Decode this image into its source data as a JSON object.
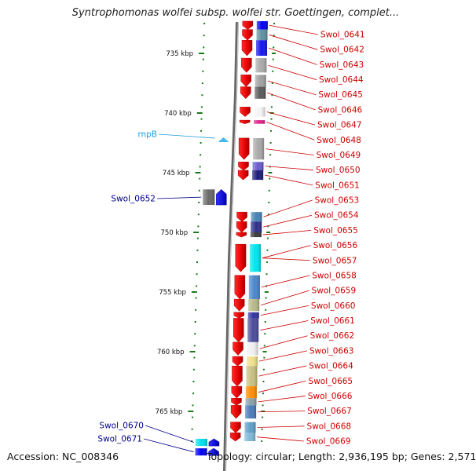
{
  "title": "Syntrophomonas wolfei subsp. wolfei str. Goettingen, complet...",
  "footer": {
    "accession": "Accession: NC_008346",
    "topology": "Topology: circular; Length: 2,936,195 bp; Genes: 2,571"
  },
  "colors": {
    "right_label": "#cc0000",
    "left_label": "#00008b",
    "rna_label": "#1e9bd7",
    "scale_tick": "#1a7a1a"
  },
  "scale": {
    "unit": "kbp",
    "ticks": [
      {
        "kbp": 735,
        "label": "735 kbp"
      },
      {
        "kbp": 740,
        "label": "740 kbp"
      },
      {
        "kbp": 745,
        "label": "745 kbp"
      },
      {
        "kbp": 750,
        "label": "750 kbp"
      },
      {
        "kbp": 755,
        "label": "755 kbp"
      },
      {
        "kbp": 760,
        "label": "760 kbp"
      },
      {
        "kbp": 765,
        "label": "765 kbp"
      }
    ]
  },
  "genes_right": [
    {
      "name": "Swol_0641",
      "start": 732.3,
      "end": 733.0,
      "color": "#0000ee"
    },
    {
      "name": "Swol_0642",
      "start": 733.0,
      "end": 733.9,
      "color": "#5f8fa0"
    },
    {
      "name": "Swol_0643",
      "start": 733.9,
      "end": 735.2,
      "color": "#1414ee"
    },
    {
      "name": "Swol_0644",
      "start": 735.4,
      "end": 736.6,
      "color": "#a9a9a9"
    },
    {
      "name": "Swol_0645",
      "start": 736.8,
      "end": 737.8,
      "color": "#a0a0a0"
    },
    {
      "name": "Swol_0646",
      "start": 737.8,
      "end": 738.8,
      "color": "#5a5a5a"
    },
    {
      "name": "Swol_0647",
      "start": 739.5,
      "end": 740.3,
      "color": "#f5f5f5"
    },
    {
      "name": "Swol_0648",
      "start": 740.6,
      "end": 740.9,
      "color": "#e0208a"
    },
    {
      "name": "Swol_0649",
      "start": 742.1,
      "end": 743.9,
      "color": "#a8a8a8"
    },
    {
      "name": "Swol_0650",
      "start": 744.1,
      "end": 744.8,
      "color": "#6a5acd"
    },
    {
      "name": "Swol_0651",
      "start": 744.8,
      "end": 745.6,
      "color": "#1a1a7a"
    },
    {
      "name": "Swol_0653",
      "start": 748.3,
      "end": 749.1,
      "color": "#4682b4"
    },
    {
      "name": "Swol_0654",
      "start": 749.1,
      "end": 750.0,
      "color": "#2e2e8b"
    },
    {
      "name": "Swol_0655",
      "start": 750.0,
      "end": 750.4,
      "color": "#3a3a3a"
    },
    {
      "name": "Swol_0656",
      "start": 751.0,
      "end": 753.3,
      "color": "#00e5ee"
    },
    {
      "name": "Swol_0657",
      "start": 751.0,
      "end": 753.3,
      "color": "#00e5ee"
    },
    {
      "name": "Swol_0658",
      "start": 753.6,
      "end": 755.6,
      "color": "#4a86c8"
    },
    {
      "name": "Swol_0659",
      "start": 755.6,
      "end": 756.6,
      "color": "#b8b888"
    },
    {
      "name": "Swol_0660",
      "start": 756.7,
      "end": 757.2,
      "color": "#3030a0"
    },
    {
      "name": "Swol_0661",
      "start": 757.2,
      "end": 759.2,
      "color": "#4b4b9b"
    },
    {
      "name": "Swol_0662",
      "start": 759.2,
      "end": 760.3,
      "color": "#f0f0f0"
    },
    {
      "name": "Swol_0663",
      "start": 760.4,
      "end": 761.2,
      "color": "#f0e08a"
    },
    {
      "name": "Swol_0664",
      "start": 761.2,
      "end": 762.9,
      "color": "#c8c080"
    },
    {
      "name": "Swol_0665",
      "start": 762.9,
      "end": 763.9,
      "color": "#ff8c00"
    },
    {
      "name": "Swol_0666",
      "start": 763.9,
      "end": 764.5,
      "color": "#8aa0a8"
    },
    {
      "name": "Swol_0667",
      "start": 764.5,
      "end": 765.6,
      "color": "#4a7ab8"
    },
    {
      "name": "Swol_0668",
      "start": 765.9,
      "end": 766.8,
      "color": "#5f9fc8"
    },
    {
      "name": "Swol_0669",
      "start": 766.8,
      "end": 767.5,
      "color": "#7fb8d8"
    }
  ],
  "genes_left": [
    {
      "name": "rnpB",
      "start": 741.9,
      "end": 742.3,
      "color": "#40b8e8",
      "label_color": "#1e9bd7"
    },
    {
      "name": "Swol_0652",
      "start": 746.4,
      "end": 747.7,
      "color": "#6a6a6a",
      "label_color": "#00008b"
    },
    {
      "name": "Swol_0670",
      "start": 767.3,
      "end": 767.9,
      "color": "#00e0ee",
      "label_color": "#00008b"
    },
    {
      "name": "Swol_0671",
      "start": 768.1,
      "end": 768.7,
      "color": "#0000ee",
      "label_color": "#00008b"
    }
  ]
}
